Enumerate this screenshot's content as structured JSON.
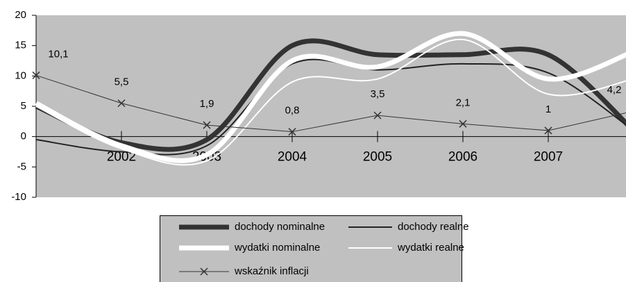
{
  "chart_data": {
    "type": "line",
    "categories": [
      null,
      "2002",
      "2003",
      "2004",
      "2005",
      "2006",
      "2007",
      null
    ],
    "series": [
      {
        "name": "dochody nominalne",
        "color": "#333333",
        "width": 7,
        "smooth": true,
        "values": [
          5,
          -1,
          -0.5,
          15,
          13.5,
          13.5,
          13.5,
          1
        ]
      },
      {
        "name": "dochody realne",
        "color": "#222222",
        "width": 2,
        "smooth": true,
        "values": [
          -0.5,
          -2.5,
          -1.5,
          12,
          11,
          12,
          10.5,
          1
        ]
      },
      {
        "name": "wydatki nominalne",
        "color": "#ffffff",
        "width": 7,
        "smooth": true,
        "values": [
          5.5,
          -1.5,
          -3,
          12.5,
          11.5,
          17,
          9.5,
          14
        ]
      },
      {
        "name": "wydatki realne",
        "color": "#ffffff",
        "width": 2,
        "smooth": true,
        "values": [
          5,
          -2,
          -4,
          9,
          9.5,
          16,
          7,
          9.5
        ]
      },
      {
        "name": "wskaźnik inflacji",
        "color": "#333333",
        "width": 1,
        "smooth": false,
        "marker": "x",
        "values": [
          10.1,
          5.5,
          1.9,
          0.8,
          3.5,
          2.1,
          1,
          4.2
        ],
        "value_labels": [
          "10,1",
          "5,5",
          "1,9",
          "0,8",
          "3,5",
          "2,1",
          "1",
          "4,2"
        ]
      }
    ],
    "ylim": [
      -10,
      20
    ],
    "yticks": [
      -10,
      -5,
      0,
      5,
      10,
      15,
      20
    ],
    "grid": false,
    "legend": "bottom"
  }
}
